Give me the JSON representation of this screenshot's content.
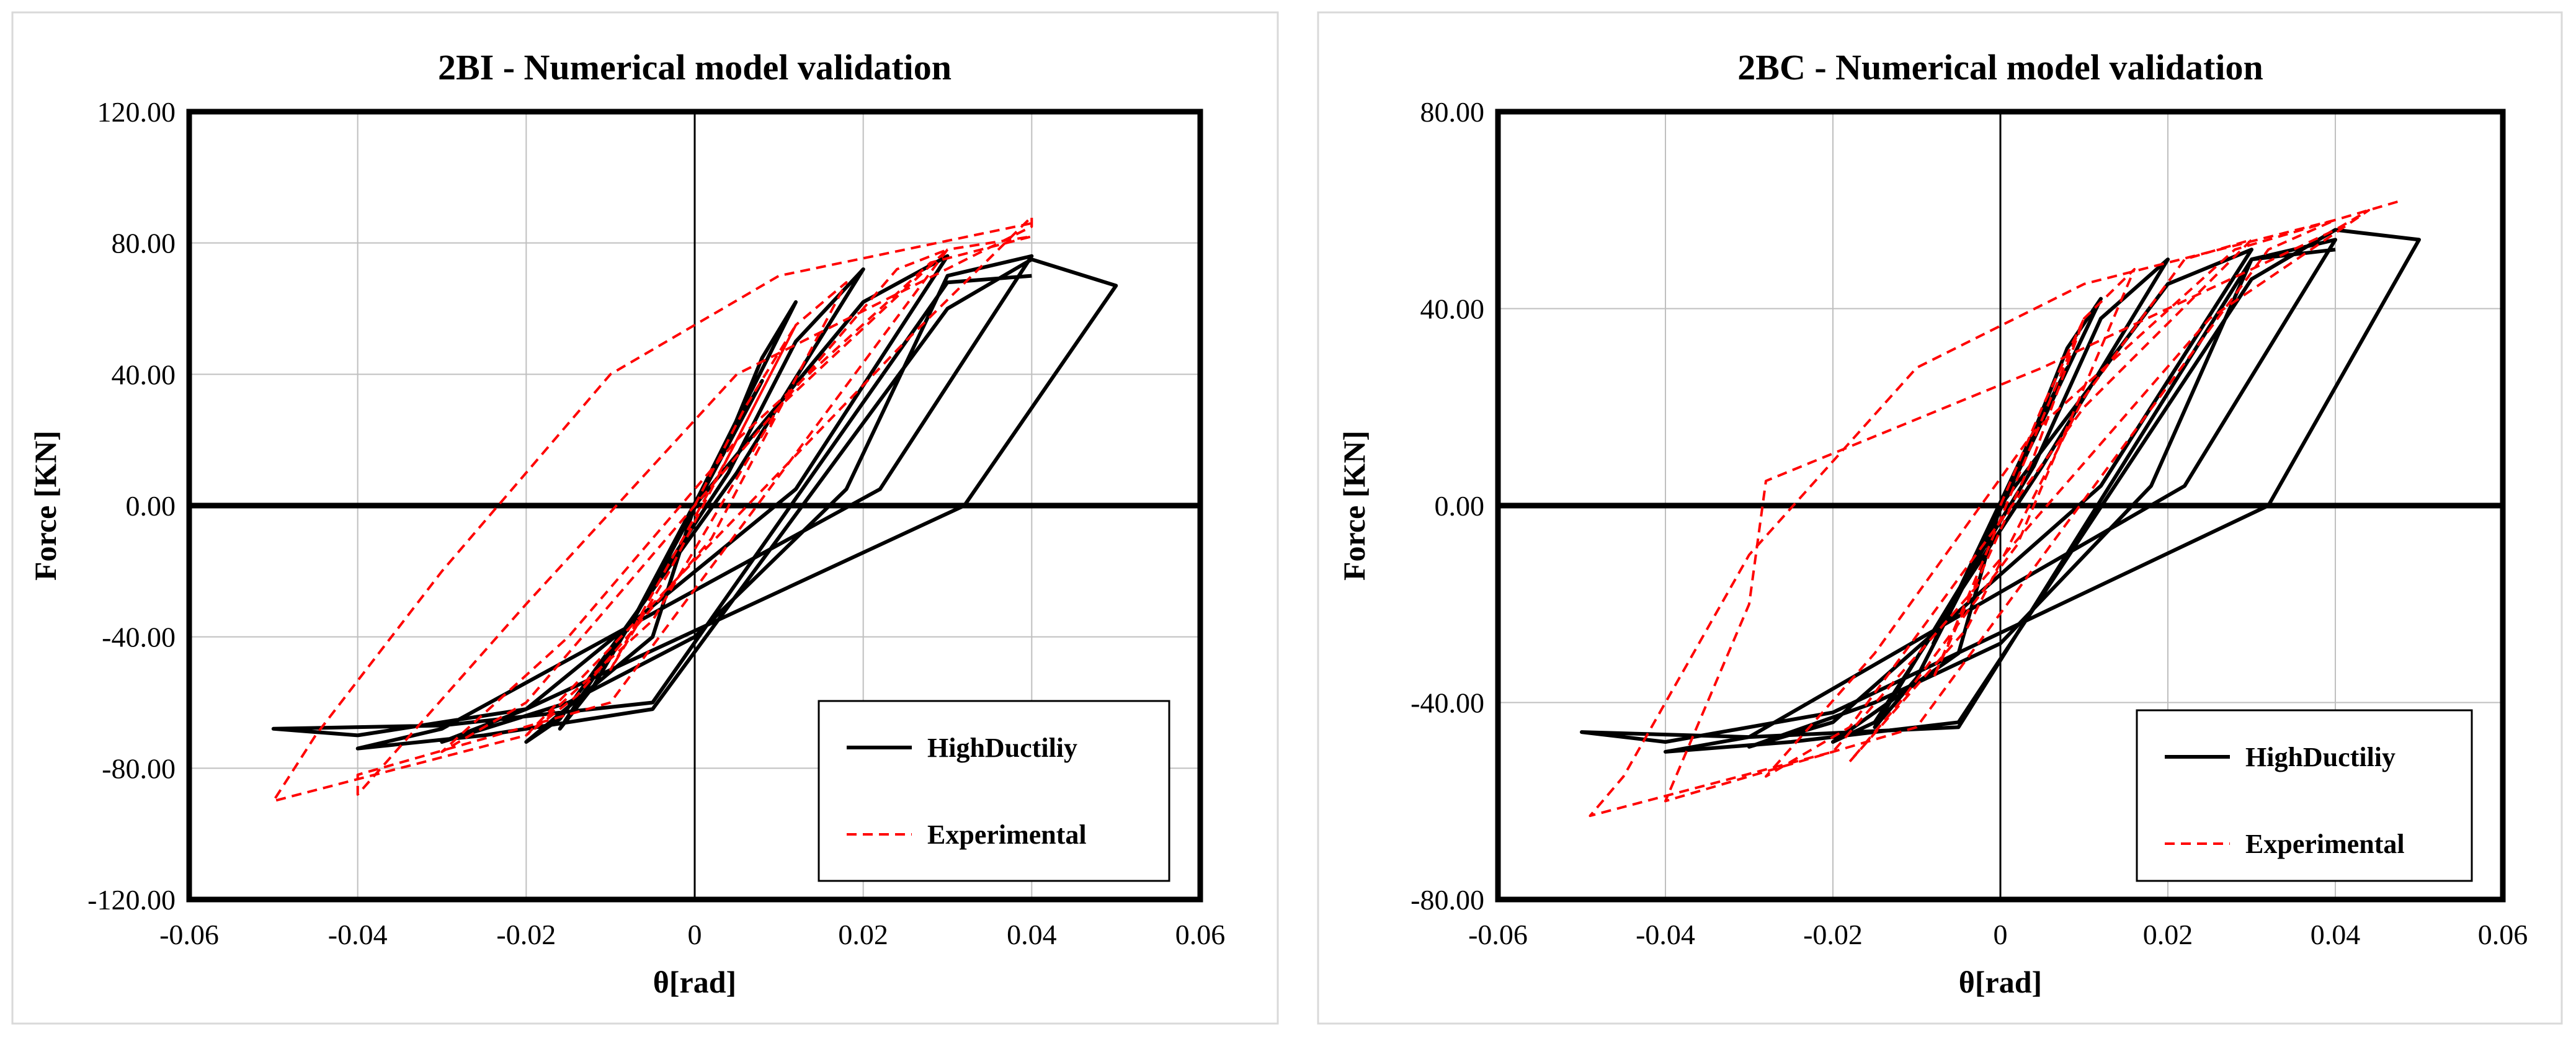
{
  "chart_data": [
    {
      "type": "line",
      "title": "2BI - Numerical model validation",
      "xlabel": "θ[rad]",
      "ylabel": "Force [KN]",
      "xlim": [
        -0.06,
        0.06
      ],
      "ylim": [
        -120,
        120
      ],
      "xticks": [
        -0.06,
        -0.04,
        -0.02,
        0,
        0.02,
        0.04,
        0.06
      ],
      "xtick_labels": [
        "-0.06",
        "-0.04",
        "-0.02",
        "0",
        "0.02",
        "0.04",
        "0.06"
      ],
      "yticks": [
        120,
        80,
        40,
        0,
        -40,
        -80,
        -120
      ],
      "ytick_labels": [
        "120.00",
        "80.00",
        "40.00",
        "0.00",
        "-40.00",
        "-80.00",
        "-120.00"
      ],
      "grid": true,
      "legend_position": "bottom-right",
      "series": [
        {
          "name": "HighDuctiliy",
          "color": "#000000",
          "dash": "solid",
          "x": [
            0,
            0.004,
            0.008,
            -0.004,
            -0.008,
            0.004,
            0.008,
            0.012,
            -0.004,
            -0.012,
            -0.016,
            0.004,
            0.012,
            0.02,
            0.005,
            -0.016,
            -0.02,
            -0.005,
            0,
            0.02,
            0.03,
            0.012,
            -0.02,
            -0.03,
            -0.015,
            0,
            0.018,
            0.03,
            0.04,
            0.022,
            -0.03,
            -0.04,
            -0.025,
            -0.005,
            0.03,
            0.04,
            0.05,
            0.032,
            -0.02,
            -0.04,
            -0.05,
            -0.03,
            -0.005,
            0.03,
            0.04
          ],
          "y": [
            0,
            20,
            38,
            -20,
            -38,
            20,
            45,
            62,
            -20,
            -55,
            -68,
            10,
            50,
            72,
            10,
            -65,
            -72,
            -40,
            0,
            62,
            76,
            5,
            -62,
            -72,
            -60,
            -40,
            5,
            70,
            76,
            5,
            -68,
            -74,
            -70,
            -62,
            60,
            75,
            67,
            0,
            -62,
            -70,
            -68,
            -67,
            -60,
            68,
            70
          ]
        },
        {
          "name": "Experimental",
          "color": "#ff0000",
          "dash": "dashed",
          "x": [
            0,
            0.006,
            0.012,
            -0.003,
            -0.01,
            0.004,
            0.012,
            0.018,
            0.002,
            -0.014,
            -0.02,
            -0.005,
            0.01,
            0.024,
            0.03,
            0.01,
            -0.02,
            -0.03,
            -0.015,
            0.005,
            0.028,
            0.04,
            0.03,
            -0.01,
            -0.04,
            -0.04,
            -0.02,
            0.005,
            0.04,
            0.04,
            0.025,
            -0.02,
            -0.05,
            -0.045,
            -0.03,
            -0.01,
            0.01,
            0.04
          ],
          "y": [
            0,
            30,
            55,
            -20,
            -50,
            15,
            55,
            68,
            -10,
            -58,
            -70,
            -35,
            30,
            72,
            78,
            30,
            -60,
            -75,
            -40,
            20,
            74,
            82,
            78,
            -60,
            -82,
            -88,
            -30,
            40,
            85,
            88,
            50,
            -70,
            -90,
            -70,
            -20,
            40,
            70,
            86
          ]
        }
      ]
    },
    {
      "type": "line",
      "title": "2BC - Numerical model validation",
      "xlabel": "θ[rad]",
      "ylabel": "Force [KN]",
      "xlim": [
        -0.06,
        0.06
      ],
      "ylim": [
        -80,
        80
      ],
      "xticks": [
        -0.06,
        -0.04,
        -0.02,
        0,
        0.02,
        0.04,
        0.06
      ],
      "xtick_labels": [
        "-0.06",
        "-0.04",
        "-0.02",
        "0",
        "0.02",
        "0.04",
        "0.06"
      ],
      "yticks": [
        80,
        40,
        0,
        -40,
        -80
      ],
      "ytick_labels": [
        "80.00",
        "40.00",
        "0.00",
        "-40.00",
        "-80.00"
      ],
      "grid": true,
      "legend_position": "bottom-right",
      "series": [
        {
          "name": "HighDuctiliy",
          "color": "#000000",
          "dash": "solid",
          "x": [
            0,
            0.004,
            0.008,
            -0.004,
            -0.008,
            0.004,
            0.008,
            0.012,
            -0.004,
            -0.01,
            -0.015,
            0.004,
            0.012,
            0.02,
            0.005,
            -0.015,
            -0.02,
            -0.005,
            0,
            0.02,
            0.03,
            0.012,
            -0.02,
            -0.03,
            -0.015,
            0,
            0.018,
            0.03,
            0.04,
            0.022,
            -0.03,
            -0.04,
            -0.025,
            -0.005,
            0.03,
            0.04,
            0.05,
            0.032,
            -0.02,
            -0.04,
            -0.05,
            -0.03,
            -0.005,
            0.03,
            0.04
          ],
          "y": [
            0,
            15,
            28,
            -15,
            -28,
            15,
            32,
            42,
            -15,
            -35,
            -45,
            8,
            38,
            50,
            8,
            -44,
            -48,
            -30,
            0,
            45,
            52,
            4,
            -44,
            -49,
            -40,
            -28,
            4,
            50,
            54,
            4,
            -47,
            -50,
            -48,
            -44,
            46,
            56,
            54,
            0,
            -42,
            -48,
            -46,
            -47,
            -45,
            50,
            52
          ]
        },
        {
          "name": "Experimental",
          "color": "#ff0000",
          "dash": "dashed",
          "x": [
            0,
            0.005,
            0.01,
            -0.003,
            -0.008,
            0.004,
            0.01,
            0.016,
            0.002,
            -0.012,
            -0.018,
            -0.004,
            0.01,
            0.022,
            0.03,
            0.01,
            -0.018,
            -0.028,
            -0.015,
            0.004,
            0.028,
            0.04,
            0.032,
            -0.01,
            -0.04,
            -0.03,
            -0.028,
            0.005,
            0.04,
            0.044,
            0.025,
            -0.02,
            -0.049,
            -0.045,
            -0.03,
            -0.01,
            0.01,
            0.04,
            0.048
          ],
          "y": [
            0,
            20,
            38,
            -15,
            -35,
            10,
            38,
            48,
            -8,
            -40,
            -52,
            -25,
            22,
            50,
            54,
            20,
            -45,
            -55,
            -30,
            15,
            52,
            58,
            52,
            -45,
            -60,
            -20,
            5,
            28,
            56,
            60,
            38,
            -50,
            -63,
            -55,
            -10,
            28,
            45,
            58,
            62
          ]
        }
      ]
    }
  ]
}
